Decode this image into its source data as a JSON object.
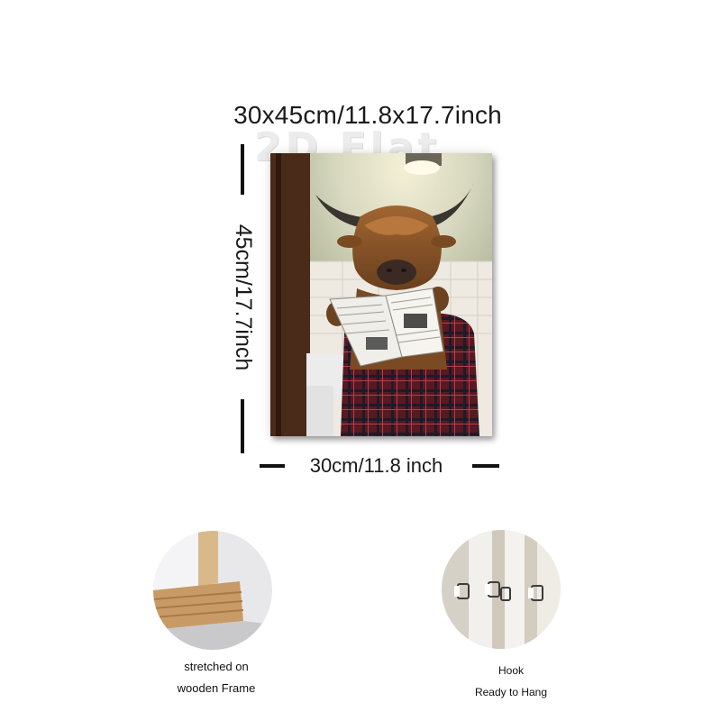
{
  "product": {
    "size_title": "30x45cm/11.8x17.7inch",
    "height_label": "45cm/17.7inch",
    "width_label": "30cm/11.8 inch",
    "watermark": "2D Flat"
  },
  "features": [
    {
      "caption_line1": "stretched on",
      "caption_line2": "wooden Frame"
    },
    {
      "caption_line1": "Hook",
      "caption_line2": "Ready to Hang"
    }
  ],
  "colors": {
    "dimension_bars": "#111111",
    "fur": "#8a5528",
    "wall": "#c8ccb0",
    "plaid_red": "#7a1f28"
  }
}
